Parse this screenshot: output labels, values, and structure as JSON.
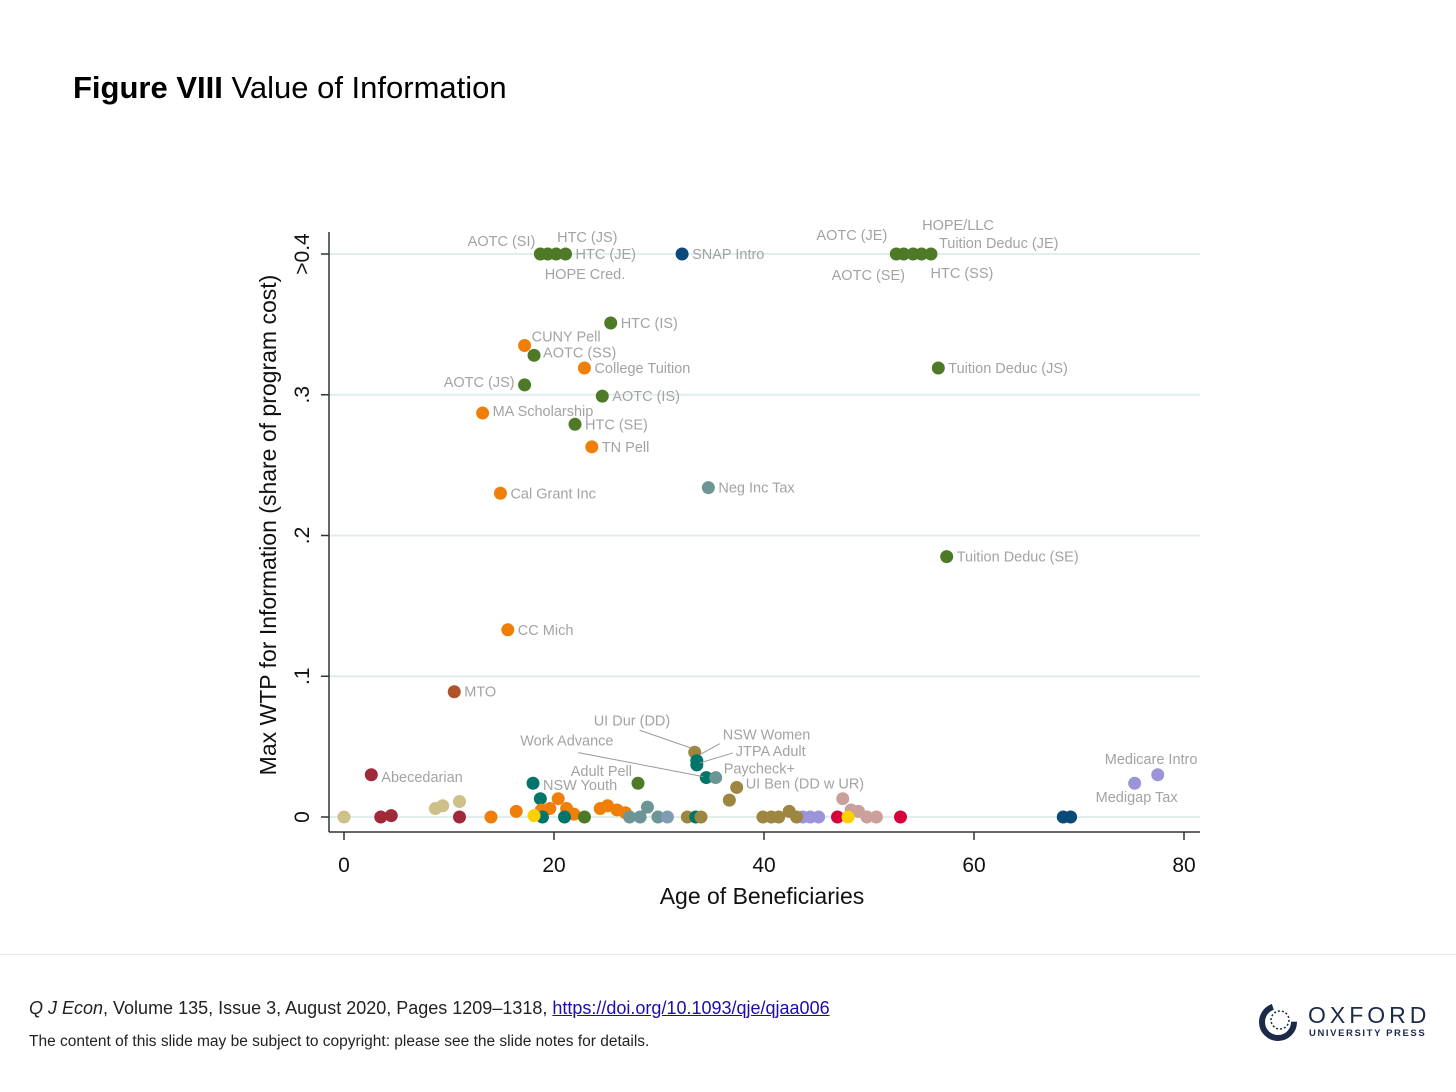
{
  "figure": {
    "label": "Figure VIII",
    "title": "Value of Information"
  },
  "chart_data": {
    "type": "scatter",
    "title": "Value of Information",
    "xlabel": "Age of Beneficiaries",
    "ylabel": "Max WTP for Information (share of program cost)",
    "xlim": [
      -2,
      81.5
    ],
    "ylim": [
      -0.01,
      0.42
    ],
    "xticks": [
      0,
      20,
      40,
      60,
      80
    ],
    "xtick_labels": [
      "0",
      "20",
      "40",
      "60",
      "80"
    ],
    "yticks": [
      0,
      0.1,
      0.2,
      0.3,
      0.4
    ],
    "ytick_labels": [
      "0",
      ".1",
      ".2",
      ".3",
      ">0.4"
    ],
    "grid": "horizontal",
    "colors": {
      "green": "#4e7a27",
      "orange": "#f07f09",
      "teal": "#00766b",
      "grayteal": "#6e9595",
      "olive": "#9c8640",
      "navy": "#0b4a78",
      "rust": "#b0522a",
      "maroon": "#a0293a",
      "khaki": "#cdc088",
      "lavender": "#9b94d8",
      "pink": "#c9a09a",
      "crimson": "#d6003c",
      "yellow": "#ffd000",
      "bluegray": "#7f9cb2"
    },
    "points": [
      {
        "x": 18.7,
        "y": 0.4,
        "c": "green",
        "label": "AOTC (SI)"
      },
      {
        "x": 19.4,
        "y": 0.4,
        "c": "green",
        "label": "HOPE Cred."
      },
      {
        "x": 20.2,
        "y": 0.4,
        "c": "green",
        "label": "HTC (JS)"
      },
      {
        "x": 21.1,
        "y": 0.4,
        "c": "green",
        "label": "HTC (JE)"
      },
      {
        "x": 32.2,
        "y": 0.4,
        "c": "navy",
        "label": "SNAP Intro"
      },
      {
        "x": 52.6,
        "y": 0.4,
        "c": "green",
        "label": "AOTC (JE)"
      },
      {
        "x": 53.3,
        "y": 0.4,
        "c": "green",
        "label": "AOTC (SE)"
      },
      {
        "x": 54.2,
        "y": 0.4,
        "c": "green",
        "label": "HOPE/LLC"
      },
      {
        "x": 55.0,
        "y": 0.4,
        "c": "green",
        "label": "HTC (SS)"
      },
      {
        "x": 55.9,
        "y": 0.4,
        "c": "green",
        "label": "Tuition Deduc (JE)"
      },
      {
        "x": 25.4,
        "y": 0.351,
        "c": "green",
        "label": "HTC (IS)"
      },
      {
        "x": 17.2,
        "y": 0.335,
        "c": "orange",
        "label": "CUNY Pell"
      },
      {
        "x": 18.1,
        "y": 0.328,
        "c": "green",
        "label": "AOTC (SS)"
      },
      {
        "x": 22.9,
        "y": 0.319,
        "c": "orange",
        "label": "College Tuition"
      },
      {
        "x": 17.2,
        "y": 0.307,
        "c": "green",
        "label": "AOTC (JS)"
      },
      {
        "x": 24.6,
        "y": 0.299,
        "c": "green",
        "label": "AOTC (IS)"
      },
      {
        "x": 13.2,
        "y": 0.287,
        "c": "orange",
        "label": "MA Scholarship"
      },
      {
        "x": 22.0,
        "y": 0.279,
        "c": "green",
        "label": "HTC (SE)"
      },
      {
        "x": 23.6,
        "y": 0.263,
        "c": "orange",
        "label": "TN Pell"
      },
      {
        "x": 14.9,
        "y": 0.23,
        "c": "orange",
        "label": "Cal Grant Inc"
      },
      {
        "x": 34.7,
        "y": 0.234,
        "c": "grayteal",
        "label": "Neg Inc Tax"
      },
      {
        "x": 56.6,
        "y": 0.319,
        "c": "green",
        "label": "Tuition Deduc (JS)"
      },
      {
        "x": 57.4,
        "y": 0.185,
        "c": "green",
        "label": "Tuition Deduc (SE)"
      },
      {
        "x": 15.6,
        "y": 0.133,
        "c": "orange",
        "label": "CC Mich"
      },
      {
        "x": 10.5,
        "y": 0.089,
        "c": "rust",
        "label": "MTO"
      },
      {
        "x": 2.6,
        "y": 0.03,
        "c": "maroon",
        "label": "Abecedarian"
      },
      {
        "x": 33.4,
        "y": 0.046,
        "c": "olive",
        "label": "UI Dur (DD)"
      },
      {
        "x": 33.6,
        "y": 0.04,
        "c": "teal",
        "label": "NSW Women"
      },
      {
        "x": 33.6,
        "y": 0.037,
        "c": "teal",
        "label": "JTPA Adult"
      },
      {
        "x": 34.5,
        "y": 0.028,
        "c": "teal",
        "label": "Work Advance"
      },
      {
        "x": 35.4,
        "y": 0.028,
        "c": "grayteal",
        "label": "Paycheck+"
      },
      {
        "x": 37.4,
        "y": 0.021,
        "c": "olive",
        "label": "UI Ben (DD w UR)"
      },
      {
        "x": 36.7,
        "y": 0.012,
        "c": "olive"
      },
      {
        "x": 28.0,
        "y": 0.024,
        "c": "green",
        "label": "Adult Pell"
      },
      {
        "x": 18.0,
        "y": 0.024,
        "c": "teal",
        "label": "NSW Youth"
      },
      {
        "x": 77.5,
        "y": 0.03,
        "c": "lavender",
        "label": "Medicare Intro"
      },
      {
        "x": 75.3,
        "y": 0.024,
        "c": "lavender",
        "label": "Medigap Tax"
      },
      {
        "x": 0,
        "y": 0,
        "c": "khaki"
      },
      {
        "x": 3.5,
        "y": 0,
        "c": "maroon"
      },
      {
        "x": 4.5,
        "y": 0.001,
        "c": "maroon"
      },
      {
        "x": 8.7,
        "y": 0.006,
        "c": "khaki"
      },
      {
        "x": 9.4,
        "y": 0.008,
        "c": "khaki"
      },
      {
        "x": 11.0,
        "y": 0.011,
        "c": "khaki"
      },
      {
        "x": 11.0,
        "y": 0,
        "c": "maroon"
      },
      {
        "x": 14.0,
        "y": 0,
        "c": "orange"
      },
      {
        "x": 16.4,
        "y": 0.004,
        "c": "orange"
      },
      {
        "x": 18.7,
        "y": 0.013,
        "c": "teal"
      },
      {
        "x": 20.4,
        "y": 0.013,
        "c": "orange"
      },
      {
        "x": 19.6,
        "y": 0.006,
        "c": "orange"
      },
      {
        "x": 18.8,
        "y": 0.005,
        "c": "orange"
      },
      {
        "x": 21.2,
        "y": 0.006,
        "c": "orange"
      },
      {
        "x": 21.9,
        "y": 0.002,
        "c": "orange"
      },
      {
        "x": 18.9,
        "y": 0,
        "c": "teal"
      },
      {
        "x": 21.0,
        "y": 0,
        "c": "teal"
      },
      {
        "x": 18.1,
        "y": 0.001,
        "c": "yellow"
      },
      {
        "x": 22.9,
        "y": 0,
        "c": "green"
      },
      {
        "x": 24.4,
        "y": 0.006,
        "c": "orange"
      },
      {
        "x": 25.1,
        "y": 0.008,
        "c": "orange"
      },
      {
        "x": 26.0,
        "y": 0.005,
        "c": "orange"
      },
      {
        "x": 26.8,
        "y": 0.003,
        "c": "orange"
      },
      {
        "x": 28.9,
        "y": 0.007,
        "c": "grayteal"
      },
      {
        "x": 27.2,
        "y": 0,
        "c": "grayteal"
      },
      {
        "x": 28.2,
        "y": 0,
        "c": "grayteal"
      },
      {
        "x": 29.9,
        "y": 0,
        "c": "grayteal"
      },
      {
        "x": 30.8,
        "y": 0,
        "c": "bluegray"
      },
      {
        "x": 32.7,
        "y": 0,
        "c": "olive"
      },
      {
        "x": 33.5,
        "y": 0,
        "c": "teal"
      },
      {
        "x": 34.0,
        "y": 0,
        "c": "olive"
      },
      {
        "x": 39.9,
        "y": 0,
        "c": "olive"
      },
      {
        "x": 40.7,
        "y": 0,
        "c": "olive"
      },
      {
        "x": 41.4,
        "y": 0,
        "c": "olive"
      },
      {
        "x": 42.4,
        "y": 0.004,
        "c": "olive"
      },
      {
        "x": 43.7,
        "y": 0,
        "c": "lavender"
      },
      {
        "x": 44.4,
        "y": 0,
        "c": "lavender"
      },
      {
        "x": 45.2,
        "y": 0,
        "c": "lavender"
      },
      {
        "x": 43.1,
        "y": 0,
        "c": "olive"
      },
      {
        "x": 47.0,
        "y": 0,
        "c": "crimson"
      },
      {
        "x": 47.5,
        "y": 0.013,
        "c": "pink"
      },
      {
        "x": 48.3,
        "y": 0.005,
        "c": "pink"
      },
      {
        "x": 49.0,
        "y": 0.004,
        "c": "pink"
      },
      {
        "x": 49.8,
        "y": 0,
        "c": "pink"
      },
      {
        "x": 50.7,
        "y": 0,
        "c": "pink"
      },
      {
        "x": 48.0,
        "y": 0,
        "c": "yellow"
      },
      {
        "x": 53.0,
        "y": 0,
        "c": "crimson"
      },
      {
        "x": 68.5,
        "y": 0,
        "c": "navy"
      },
      {
        "x": 69.2,
        "y": 0,
        "c": "navy"
      }
    ]
  },
  "footer": {
    "journal": "Q J Econ",
    "citation": ", Volume 135, Issue 3, August 2020, Pages 1209–1318, ",
    "doi": "https://doi.org/10.1093/qje/qjaa006",
    "copyright": "The content of this slide may be subject to copyright: please see the slide notes for details.",
    "publisher": "OXFORD",
    "publisher_sub": "UNIVERSITY PRESS"
  }
}
